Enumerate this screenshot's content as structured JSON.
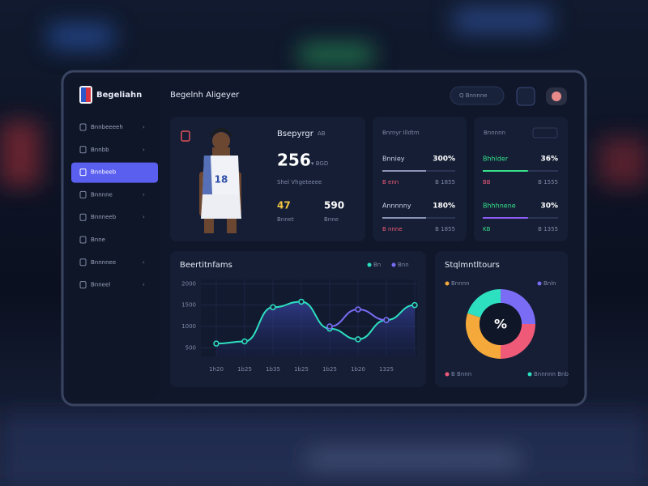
{
  "sidebar": {
    "brand": "Begeliahn",
    "menu": [
      "Bnnbeeeeh",
      "Bnnbb",
      "Bnnbeeb",
      "Bnnnne",
      "Bnnneeb",
      "Bnne",
      "Bnnnnee",
      "Bnneel"
    ]
  },
  "header": {
    "title": "Begelnh Aligeyer",
    "search": "Q Bnnnne"
  },
  "player": {
    "title": "Bsepyrgr",
    "title_note": "AB",
    "jersey": "18",
    "main_value": "256",
    "main_note": "▾ BGD",
    "subtitle": "Shel Vhgeteeee",
    "stats": [
      {
        "value": "47",
        "label": "Bnnet"
      },
      {
        "value": "590",
        "label": "Bnne"
      }
    ]
  },
  "stats_left": {
    "title": "Bnrnyr Illdtm",
    "rows": [
      {
        "label": "Bnniey",
        "value": "300%",
        "foot_left": "B enn",
        "foot_right": "B 1855"
      },
      {
        "label": "Annnnny",
        "value": "180%",
        "foot_left": "B nnne",
        "foot_right": "B 1855"
      }
    ]
  },
  "stats_right": {
    "title": "Bnnnnn",
    "rows": [
      {
        "label": "Bhhlder",
        "value": "36%",
        "foot_left": "BB",
        "foot_right": "B 1555"
      },
      {
        "label": "Bhhhnene",
        "value": "30%",
        "foot_left": "KB",
        "foot_right": "B 1355"
      }
    ]
  },
  "chart_data": [
    {
      "type": "line",
      "title": "Beertitnfams",
      "categories": [
        "1h20",
        "1b25",
        "1b35",
        "1b25",
        "1b25",
        "1b20",
        "1325",
        null
      ],
      "series": [
        {
          "name": "Bn",
          "color": "#2de0c0",
          "values": [
            600,
            650,
            1450,
            1580,
            950,
            700,
            1150,
            1500
          ]
        },
        {
          "name": "Bnn",
          "color": "#7b6cf6",
          "values": [
            null,
            null,
            null,
            null,
            1000,
            1400,
            1150,
            null
          ]
        }
      ],
      "ylim": [
        300,
        2100
      ],
      "yticks": [
        2000,
        1500,
        1000,
        500
      ],
      "grid": true
    },
    {
      "type": "pie",
      "title": "Stqlmntltours",
      "center_label": "%",
      "categories": [
        "Bnln",
        "B Bnnn",
        "Bnnnn",
        "Bnnnnn Bnb"
      ],
      "values": [
        25,
        25,
        30,
        20
      ],
      "colors": [
        "#7b6cf6",
        "#ef5a78",
        "#f4a93a",
        "#2de0c0"
      ]
    }
  ]
}
